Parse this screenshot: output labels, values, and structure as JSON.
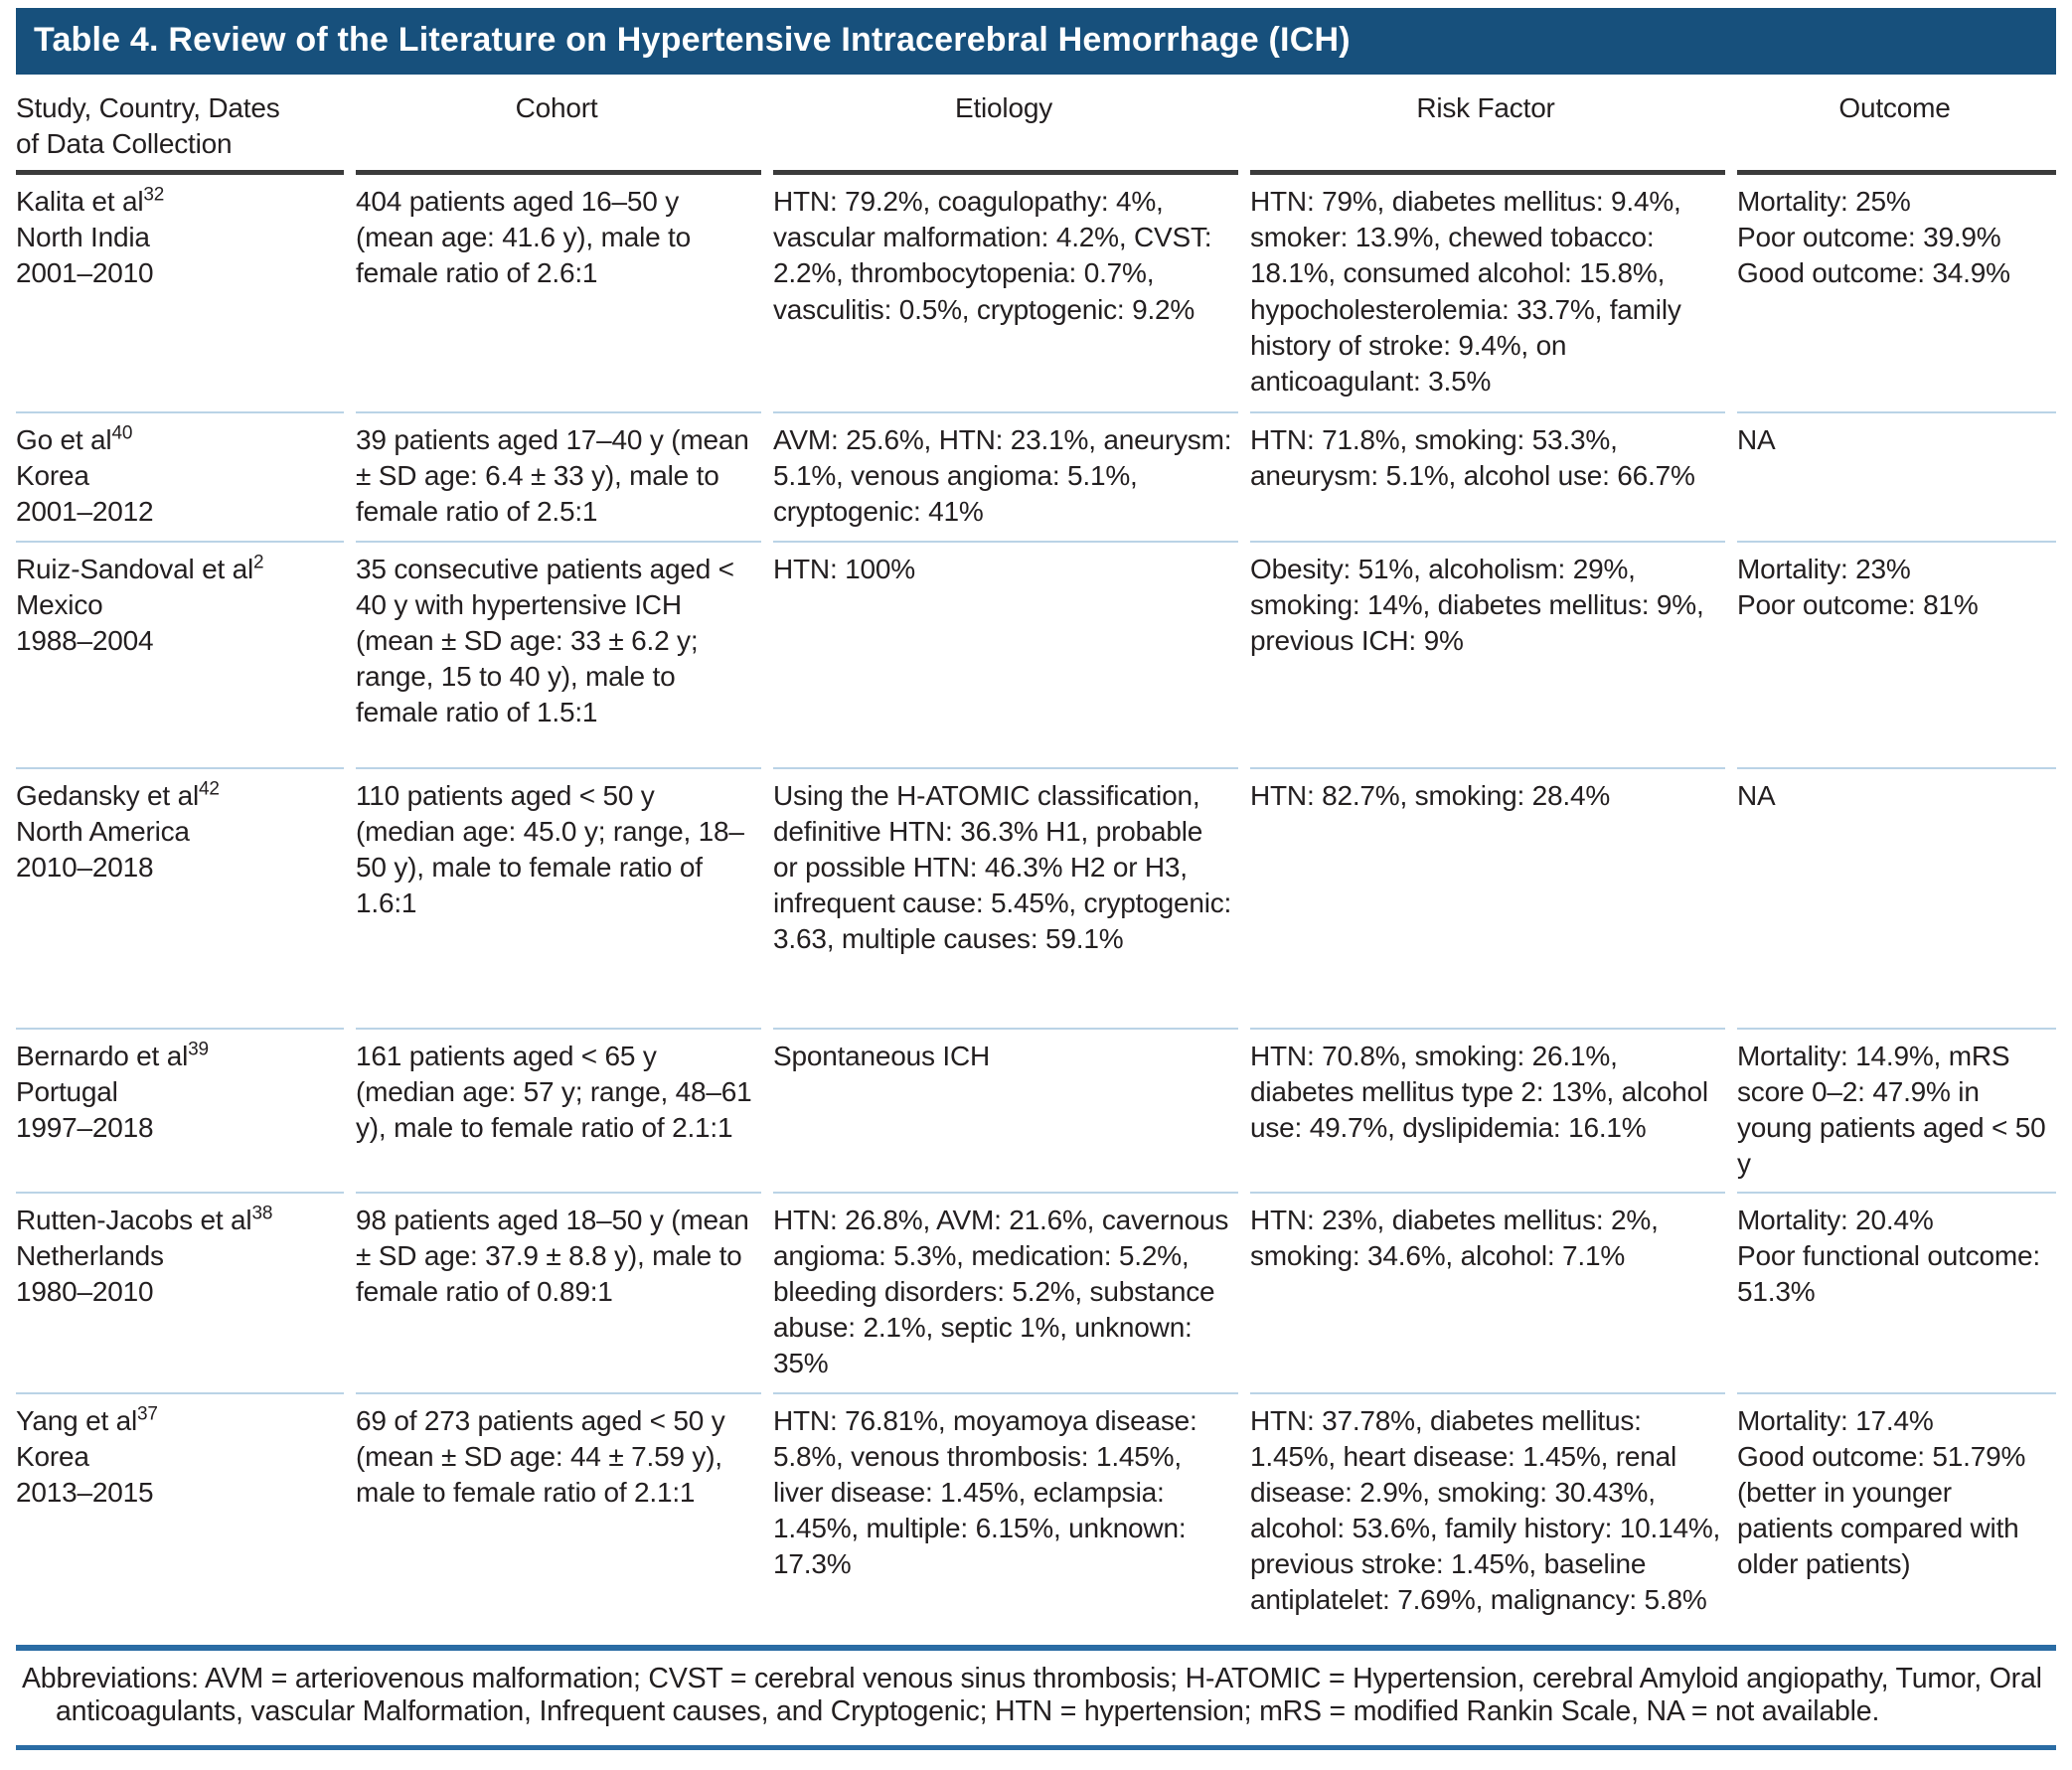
{
  "colors": {
    "blue": "#17507C",
    "brule": "#2A6CA4",
    "sep": "#BAD3E6",
    "hrule": "#3B3B3B",
    "ink": "#231F20"
  },
  "table": {
    "title": "Table 4. Review of the Literature on Hypertensive Intracerebral Hemorrhage (ICH)",
    "columns": {
      "study": "Study, Country, Dates\nof Data Collection",
      "cohort": "Cohort",
      "etiology": "Etiology",
      "risk_factor": "Risk Factor",
      "outcome": "Outcome"
    },
    "rows": [
      {
        "study": "Kalita et al",
        "ref": "32",
        "country": "North India",
        "dates": "2001–2010",
        "cohort": "404 patients aged 16–50 y (mean age: 41.6 y), male to female ratio of 2.6:1",
        "etiology": "HTN: 79.2%, coagulopathy: 4%, vascular malformation: 4.2%, CVST: 2.2%, thrombocytopenia: 0.7%, vasculitis: 0.5%, cryptogenic: 9.2%",
        "risk_factor": "HTN: 79%, diabetes mellitus: 9.4%, smoker: 13.9%, chewed tobacco: 18.1%, consumed alcohol: 15.8%, hypocholesterolemia: 33.7%, family history of stroke: 9.4%, on anticoagulant: 3.5%",
        "outcome": "Mortality: 25%\nPoor outcome: 39.9%\nGood outcome: 34.9%"
      },
      {
        "study": "Go et al",
        "ref": "40",
        "country": "Korea",
        "dates": "2001–2012",
        "cohort": "39 patients aged 17–40 y (mean ± SD age: 6.4 ± 33 y), male to female ratio of 2.5:1",
        "etiology": "AVM: 25.6%, HTN: 23.1%, aneurysm: 5.1%, venous angioma: 5.1%, cryptogenic: 41%",
        "risk_factor": "HTN: 71.8%, smoking: 53.3%, aneurysm: 5.1%, alcohol use: 66.7%",
        "outcome": "NA"
      },
      {
        "study": "Ruiz-Sandoval et al",
        "ref": "2",
        "country": "Mexico",
        "dates": "1988–2004",
        "cohort": "35 consecutive patients aged < 40 y with hypertensive ICH (mean ± SD age: 33 ± 6.2 y; range, 15 to 40 y), male to female ratio of 1.5:1",
        "etiology": "HTN: 100%",
        "risk_factor": "Obesity: 51%, alcoholism: 29%, smoking: 14%, diabetes mellitus: 9%, previous ICH: 9%",
        "outcome": "Mortality: 23%\nPoor outcome: 81%"
      },
      {
        "study": "Gedansky et al",
        "ref": "42",
        "country": "North America",
        "dates": "2010–2018",
        "cohort": "110 patients aged < 50 y (median age: 45.0 y; range, 18–50 y), male to female ratio of 1.6:1",
        "etiology": "Using the H-ATOMIC classification,\ndefinitive HTN: 36.3% H1, probable or possible HTN: 46.3% H2 or H3, infrequent cause: 5.45%, cryptogenic: 3.63, multiple causes: 59.1%",
        "risk_factor": "HTN: 82.7%, smoking: 28.4%",
        "outcome": "NA"
      },
      {
        "study": "Bernardo et al",
        "ref": "39",
        "country": "Portugal",
        "dates": "1997–2018",
        "cohort": "161 patients aged < 65 y (median age: 57 y; range, 48–61 y), male to female ratio of 2.1:1",
        "etiology": "Spontaneous ICH",
        "risk_factor": "HTN: 70.8%, smoking: 26.1%, diabetes mellitus type 2: 13%, alcohol use: 49.7%, dyslipidemia: 16.1%",
        "outcome": "Mortality: 14.9%, mRS score 0–2: 47.9% in young patients aged < 50 y"
      },
      {
        "study": "Rutten-Jacobs et al",
        "ref": "38",
        "country": "Netherlands",
        "dates": "1980–2010",
        "cohort": "98 patients aged 18–50 y (mean ± SD age: 37.9 ± 8.8 y), male to female ratio of 0.89:1",
        "etiology": "HTN: 26.8%, AVM: 21.6%, cavernous angioma: 5.3%, medication: 5.2%, bleeding disorders: 5.2%, substance abuse: 2.1%, septic 1%, unknown: 35%",
        "risk_factor": "HTN: 23%, diabetes mellitus: 2%, smoking: 34.6%, alcohol: 7.1%",
        "outcome": "Mortality: 20.4%\nPoor functional outcome: 51.3%"
      },
      {
        "study": "Yang et al",
        "ref": "37",
        "country": "Korea",
        "dates": "2013–2015",
        "cohort": "69 of 273 patients aged < 50 y (mean ± SD age: 44 ± 7.59 y), male to female ratio of 2.1:1",
        "etiology": "HTN: 76.81%, moyamoya disease: 5.8%, venous thrombosis: 1.45%, liver disease: 1.45%, eclampsia: 1.45%, multiple: 6.15%, unknown: 17.3%",
        "risk_factor": "HTN: 37.78%, diabetes mellitus: 1.45%, heart disease: 1.45%, renal disease: 2.9%, smoking: 30.43%, alcohol: 53.6%, family history: 10.14%, previous stroke: 1.45%, baseline antiplatelet: 7.69%, malignancy: 5.8%",
        "outcome": "Mortality: 17.4%\nGood outcome: 51.79% (better in younger patients compared with older patients)"
      }
    ],
    "footnote": "Abbreviations: AVM = arteriovenous malformation; CVST = cerebral venous sinus thrombosis; H-ATOMIC = Hypertension, cerebral Amyloid angiopathy, Tumor, Oral anticoagulants, vascular Malformation, Infrequent causes, and Cryptogenic; HTN = hypertension; mRS = modified Rankin Scale, NA = not available."
  }
}
